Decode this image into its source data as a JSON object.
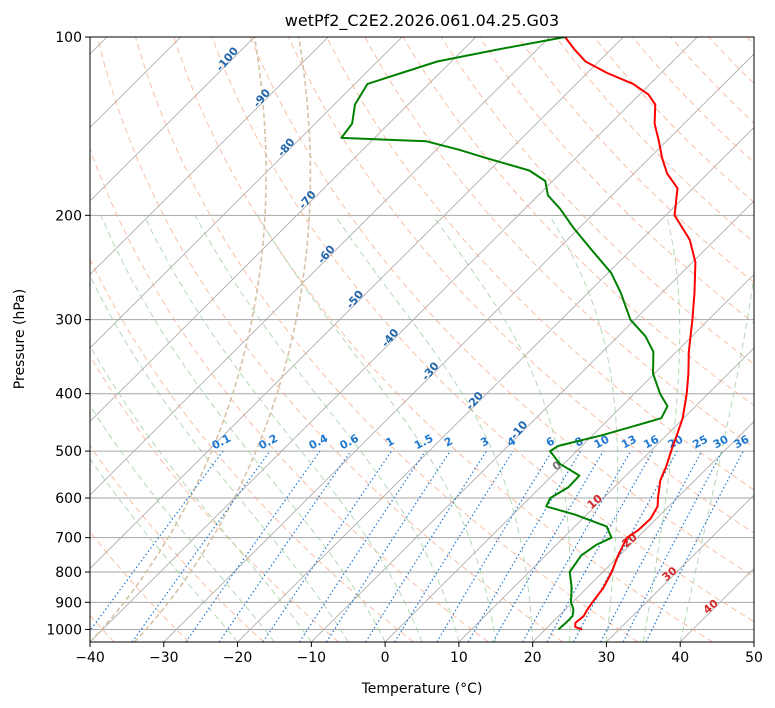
{
  "chart_data": {
    "type": "line",
    "chart_kind": "skew-t log-p",
    "title": "wetPf2_C2E2.2026.061.04.25.G03",
    "xlabel": "Temperature (°C)",
    "ylabel": "Pressure (hPa)",
    "xlim": [
      -40,
      50
    ],
    "ylim": [
      1050,
      100
    ],
    "x_ticks": [
      -40,
      -30,
      -20,
      -10,
      0,
      10,
      20,
      30,
      40,
      50
    ],
    "y_ticks": [
      100,
      200,
      300,
      400,
      500,
      600,
      700,
      800,
      900,
      1000
    ],
    "grid": true,
    "colors": {
      "temperature": "#ff0000",
      "dewpoint": "#008000",
      "isotherm": "#a6a6a6",
      "dry_adiabat": "#f4a582",
      "moist_adiabat": "#99cc99",
      "mixing_ratio": "#1f78d1",
      "wetbulb_label": "#2166ac",
      "theta_w_label": "#d62728",
      "ice_curve": "#d6c2a5"
    },
    "series": [
      {
        "name": "Temperature",
        "color": "#ff0000",
        "points": [
          {
            "p": 1000,
            "t": 25
          },
          {
            "p": 990,
            "t": 23.7
          },
          {
            "p": 975,
            "t": 23.2
          },
          {
            "p": 950,
            "t": 23.4
          },
          {
            "p": 925,
            "t": 23.0
          },
          {
            "p": 900,
            "t": 22.7
          },
          {
            "p": 850,
            "t": 22.2
          },
          {
            "p": 800,
            "t": 21.2
          },
          {
            "p": 750,
            "t": 19.8
          },
          {
            "p": 700,
            "t": 18.6
          },
          {
            "p": 680,
            "t": 19.1
          },
          {
            "p": 650,
            "t": 19.2
          },
          {
            "p": 620,
            "t": 18.5
          },
          {
            "p": 600,
            "t": 17.4
          },
          {
            "p": 560,
            "t": 15.3
          },
          {
            "p": 530,
            "t": 14.2
          },
          {
            "p": 500,
            "t": 12.8
          },
          {
            "p": 470,
            "t": 11.4
          },
          {
            "p": 440,
            "t": 9.9
          },
          {
            "p": 400,
            "t": 7.1
          },
          {
            "p": 370,
            "t": 4.6
          },
          {
            "p": 340,
            "t": 1.7
          },
          {
            "p": 300,
            "t": -2.2
          },
          {
            "p": 270,
            "t": -5.6
          },
          {
            "p": 240,
            "t": -9.6
          },
          {
            "p": 220,
            "t": -13.4
          },
          {
            "p": 200,
            "t": -18.8
          },
          {
            "p": 190,
            "t": -20.4
          },
          {
            "p": 180,
            "t": -22.1
          },
          {
            "p": 170,
            "t": -25.5
          },
          {
            "p": 160,
            "t": -28.3
          },
          {
            "p": 150,
            "t": -31.0
          },
          {
            "p": 140,
            "t": -34.0
          },
          {
            "p": 130,
            "t": -36.5
          },
          {
            "p": 125,
            "t": -38.8
          },
          {
            "p": 120,
            "t": -42.3
          },
          {
            "p": 115,
            "t": -47.3
          },
          {
            "p": 110,
            "t": -51.8
          },
          {
            "p": 105,
            "t": -54.9
          },
          {
            "p": 100,
            "t": -57.9
          }
        ]
      },
      {
        "name": "Dewpoint",
        "color": "#008000",
        "points": [
          {
            "p": 1000,
            "t": 21.8
          },
          {
            "p": 975,
            "t": 21.9
          },
          {
            "p": 950,
            "t": 21.9
          },
          {
            "p": 925,
            "t": 21.1
          },
          {
            "p": 900,
            "t": 19.8
          },
          {
            "p": 850,
            "t": 17.9
          },
          {
            "p": 800,
            "t": 15.5
          },
          {
            "p": 750,
            "t": 14.8
          },
          {
            "p": 720,
            "t": 15.4
          },
          {
            "p": 700,
            "t": 16.5
          },
          {
            "p": 670,
            "t": 14.3
          },
          {
            "p": 640,
            "t": 8.4
          },
          {
            "p": 620,
            "t": 3.4
          },
          {
            "p": 600,
            "t": 2.8
          },
          {
            "p": 575,
            "t": 3.8
          },
          {
            "p": 550,
            "t": 3.7
          },
          {
            "p": 525,
            "t": -0.6
          },
          {
            "p": 500,
            "t": -3.6
          },
          {
            "p": 490,
            "t": -3.2
          },
          {
            "p": 470,
            "t": 1.3
          },
          {
            "p": 440,
            "t": 7.0
          },
          {
            "p": 420,
            "t": 6.2
          },
          {
            "p": 400,
            "t": 3.5
          },
          {
            "p": 370,
            "t": -0.2
          },
          {
            "p": 340,
            "t": -3.1
          },
          {
            "p": 320,
            "t": -6.3
          },
          {
            "p": 300,
            "t": -10.6
          },
          {
            "p": 270,
            "t": -15.6
          },
          {
            "p": 250,
            "t": -19.6
          },
          {
            "p": 230,
            "t": -25.0
          },
          {
            "p": 210,
            "t": -30.8
          },
          {
            "p": 195,
            "t": -35.2
          },
          {
            "p": 185,
            "t": -38.7
          },
          {
            "p": 175,
            "t": -41.0
          },
          {
            "p": 168,
            "t": -44.6
          },
          {
            "p": 160,
            "t": -52.2
          },
          {
            "p": 155,
            "t": -56.9
          },
          {
            "p": 150,
            "t": -62.5
          },
          {
            "p": 148,
            "t": -74.5
          },
          {
            "p": 140,
            "t": -75.0
          },
          {
            "p": 130,
            "t": -77.2
          },
          {
            "p": 120,
            "t": -78.3
          },
          {
            "p": 110,
            "t": -71.9
          },
          {
            "p": 105,
            "t": -65.4
          },
          {
            "p": 100,
            "t": -57.9
          }
        ]
      }
    ],
    "mixing_ratio_labels": [
      {
        "text": "0.1",
        "w": 0.1
      },
      {
        "text": "0.2",
        "w": 0.2
      },
      {
        "text": "0.4",
        "w": 0.4
      },
      {
        "text": "0.6",
        "w": 0.6
      },
      {
        "text": "1",
        "w": 1
      },
      {
        "text": "1.5",
        "w": 1.5
      },
      {
        "text": "2",
        "w": 2
      },
      {
        "text": "3",
        "w": 3
      },
      {
        "text": "4",
        "w": 4
      },
      {
        "text": "6",
        "w": 6
      },
      {
        "text": "8",
        "w": 8
      },
      {
        "text": "10",
        "w": 10
      },
      {
        "text": "13",
        "w": 13
      },
      {
        "text": "16",
        "w": 16
      },
      {
        "text": "20",
        "w": 20
      },
      {
        "text": "25",
        "w": 25
      },
      {
        "text": "30",
        "w": 30
      },
      {
        "text": "36",
        "w": 36
      }
    ],
    "wetbulb_labels": [
      {
        "text": "-100",
        "p": 110,
        "t": -100
      },
      {
        "text": "-90",
        "p": 128,
        "t": -90
      },
      {
        "text": "-80",
        "p": 155,
        "t": -80
      },
      {
        "text": "-70",
        "p": 190,
        "t": -70
      },
      {
        "text": "-60",
        "p": 235,
        "t": -60
      },
      {
        "text": "-50",
        "p": 280,
        "t": -50
      },
      {
        "text": "-40",
        "p": 325,
        "t": -40
      },
      {
        "text": "-30",
        "p": 370,
        "t": -30
      },
      {
        "text": "-20",
        "p": 415,
        "t": -20
      },
      {
        "text": "-10",
        "p": 465,
        "t": -10
      }
    ],
    "theta_w_labels": [
      {
        "text": "0",
        "p": 535,
        "t": 0
      },
      {
        "text": "10",
        "p": 615,
        "t": 10
      },
      {
        "text": "20",
        "p": 715,
        "t": 20
      },
      {
        "text": "30",
        "p": 815,
        "t": 30
      },
      {
        "text": "40",
        "p": 925,
        "t": 40
      }
    ]
  }
}
